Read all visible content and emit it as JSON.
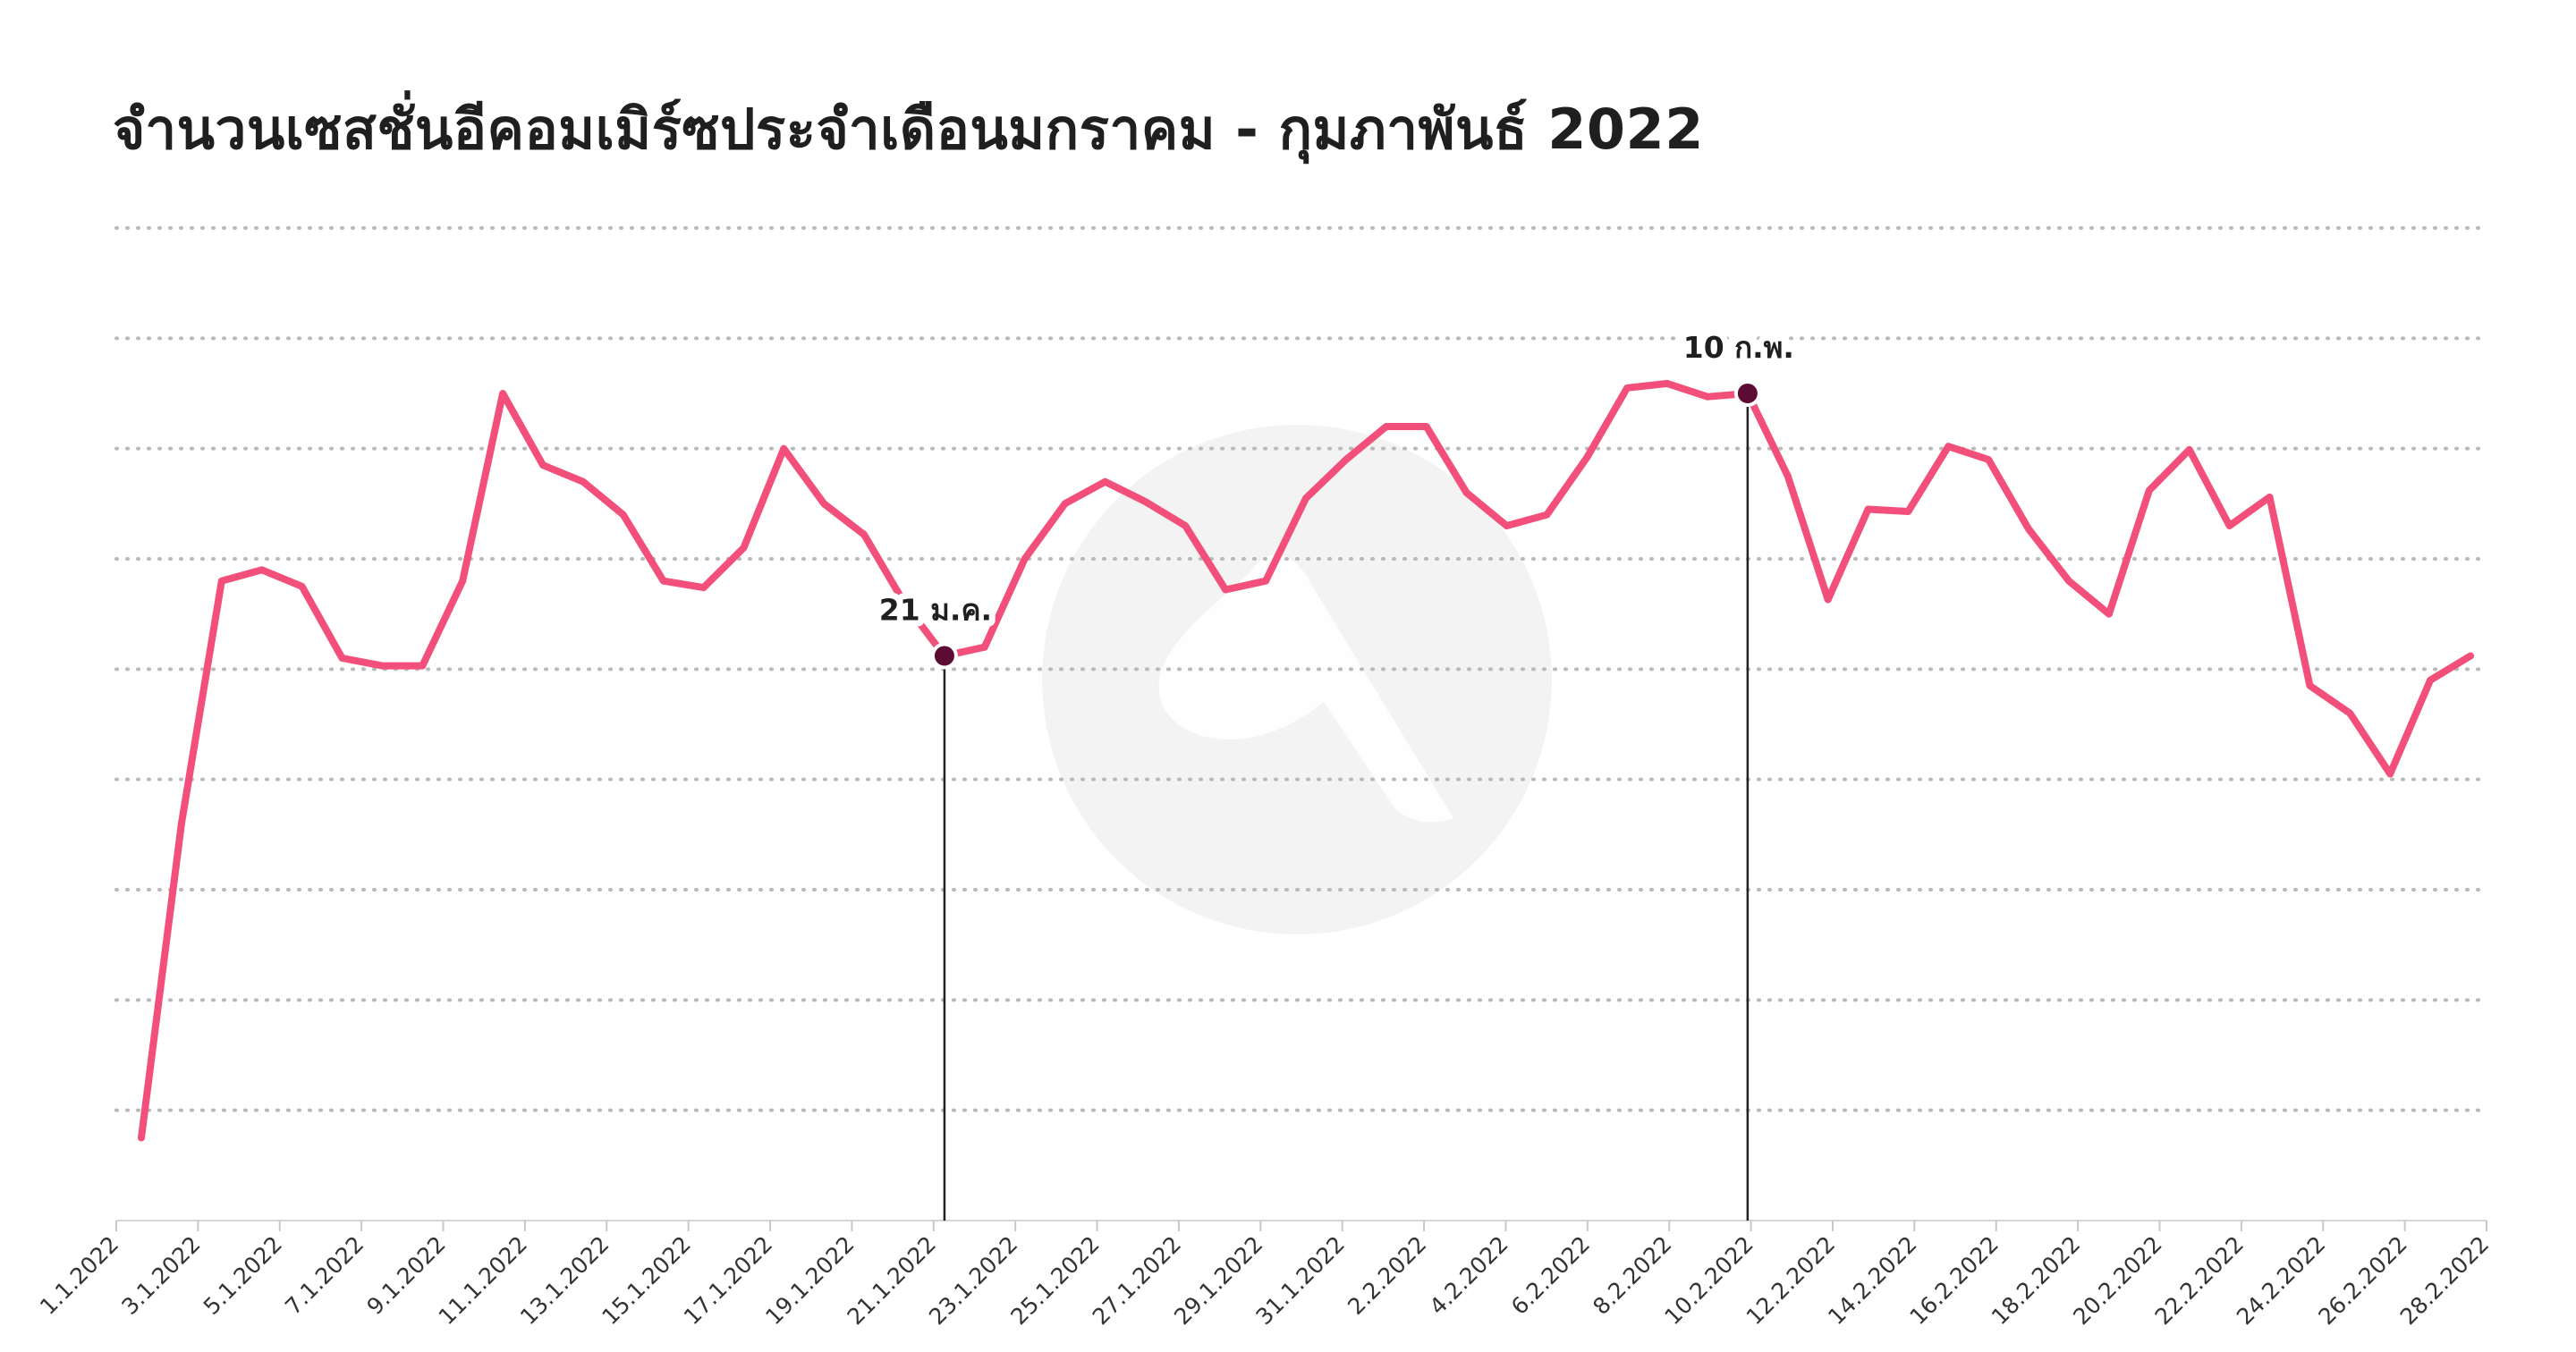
{
  "chart_data": {
    "type": "line",
    "title": "จำนวนเซสชั่นอีคอมเมิร์ซประจำเดือนมกราคม - กุมภาพันธ์ 2022",
    "xlabel": "",
    "ylabel": "",
    "ylim": [
      0,
      9
    ],
    "grid": true,
    "legend": "none",
    "x_tick_labels": [
      "1.1.2022",
      "3.1.2022",
      "5.1.2022",
      "7.1.2022",
      "9.1.2022",
      "11.1.2022",
      "13.1.2022",
      "15.1.2022",
      "17.1.2022",
      "19.1.2022",
      "21.1.2022",
      "23.1.2022",
      "25.1.2022",
      "27.1.2022",
      "29.1.2022",
      "31.1.2022",
      "2.2.2022",
      "4.2.2022",
      "6.2.2022",
      "8.2.2022",
      "10.2.2022",
      "12.2.2022",
      "14.2.2022",
      "16.2.2022",
      "18.2.2022",
      "20.2.2022",
      "22.2.2022",
      "24.2.2022",
      "26.2.2022",
      "28.2.2022"
    ],
    "series": [
      {
        "color": "#f2507b",
        "values": [
          0.75,
          3.6,
          5.8,
          5.9,
          5.75,
          5.1,
          5.03,
          5.03,
          5.8,
          7.5,
          6.85,
          6.7,
          6.4,
          5.8,
          5.74,
          6.1,
          7.0,
          6.5,
          6.22,
          5.6,
          5.12,
          5.2,
          6.0,
          6.5,
          6.7,
          6.52,
          6.3,
          5.72,
          5.8,
          6.55,
          6.9,
          7.2,
          7.2,
          6.6,
          6.3,
          6.4,
          6.92,
          7.55,
          7.59,
          7.47,
          7.5,
          6.75,
          5.63,
          6.45,
          6.43,
          7.02,
          6.9,
          6.27,
          5.8,
          5.5,
          6.62,
          6.99,
          6.3,
          6.56,
          4.85,
          4.6,
          4.05,
          4.9,
          5.12
        ]
      }
    ],
    "annotations": [
      {
        "label": "21 ม.ค.",
        "index": 20
      },
      {
        "label": "10 ก.พ.",
        "index": 40
      }
    ],
    "marker_color": "#5c0b33"
  }
}
